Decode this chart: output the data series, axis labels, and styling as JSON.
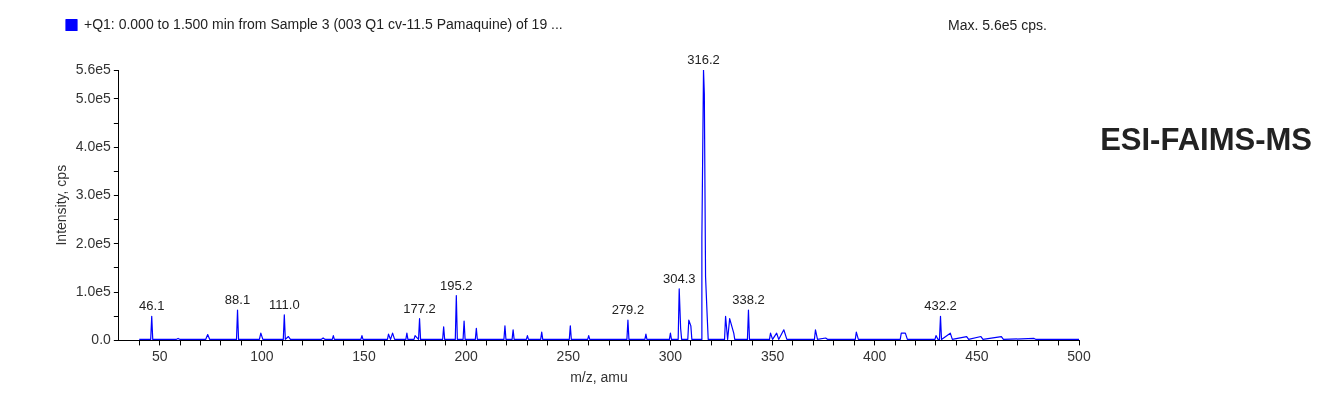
{
  "chart_data": {
    "type": "line",
    "xlabel": "m/z, amu",
    "ylabel": "Intensity, cps",
    "xlim": [
      30,
      500
    ],
    "xticks": [
      {
        "value": 40,
        "label": null
      },
      50,
      {
        "value": 60,
        "label": null
      },
      {
        "value": 70,
        "label": null
      },
      {
        "value": 80,
        "label": null
      },
      {
        "value": 90,
        "label": null
      },
      100,
      {
        "value": 110,
        "label": null
      },
      {
        "value": 120,
        "label": null
      },
      {
        "value": 130,
        "label": null
      },
      {
        "value": 140,
        "label": null
      },
      150,
      {
        "value": 160,
        "label": null
      },
      {
        "value": 170,
        "label": null
      },
      {
        "value": 180,
        "label": null
      },
      {
        "value": 190,
        "label": null
      },
      200,
      {
        "value": 210,
        "label": null
      },
      {
        "value": 220,
        "label": null
      },
      {
        "value": 230,
        "label": null
      },
      {
        "value": 240,
        "label": null
      },
      250,
      {
        "value": 260,
        "label": null
      },
      {
        "value": 270,
        "label": null
      },
      {
        "value": 280,
        "label": null
      },
      {
        "value": 290,
        "label": null
      },
      300,
      {
        "value": 310,
        "label": null
      },
      {
        "value": 320,
        "label": null
      },
      {
        "value": 330,
        "label": null
      },
      {
        "value": 340,
        "label": null
      },
      350,
      {
        "value": 360,
        "label": null
      },
      {
        "value": 370,
        "label": null
      },
      {
        "value": 380,
        "label": null
      },
      {
        "value": 390,
        "label": null
      },
      400,
      {
        "value": 410,
        "label": null
      },
      {
        "value": 420,
        "label": null
      },
      {
        "value": 430,
        "label": null
      },
      {
        "value": 440,
        "label": null
      },
      450,
      {
        "value": 460,
        "label": null
      },
      {
        "value": 470,
        "label": null
      },
      {
        "value": 480,
        "label": null
      },
      {
        "value": 490,
        "label": null
      },
      500
    ],
    "ylim": [
      0,
      560000
    ],
    "yticks": [
      {
        "value": 0,
        "label": "0.0"
      },
      {
        "value": 50000,
        "label": null
      },
      {
        "value": 100000,
        "label": "1.0e5"
      },
      {
        "value": 150000,
        "label": null
      },
      {
        "value": 200000,
        "label": "2.0e5"
      },
      {
        "value": 250000,
        "label": null
      },
      {
        "value": 300000,
        "label": "3.0e5"
      },
      {
        "value": 350000,
        "label": null
      },
      {
        "value": 400000,
        "label": "4.0e5"
      },
      {
        "value": 450000,
        "label": null
      },
      {
        "value": 500000,
        "label": "5.0e5"
      },
      {
        "value": 560000,
        "label": "5.6e5"
      }
    ],
    "grid": false,
    "legend": "top left",
    "marker": "none",
    "line_style": "solid",
    "series": [
      {
        "name": "+Q1: 0.000 to 1.500 min from Sample 3 (003 Q1 cv-11.5 Pamaquine) of 19 ...",
        "color": "#0000ff",
        "x": [
          40,
          45.6,
          46.1,
          46.6,
          58,
          59,
          60,
          72.5,
          73.5,
          74.5,
          87.6,
          88.1,
          88.6,
          98.8,
          99.5,
          100.5,
          110.5,
          111,
          111.5,
          113,
          114,
          129,
          130,
          131,
          134.5,
          135,
          135.5,
          148.5,
          149,
          149.5,
          161.5,
          162,
          163,
          164,
          165,
          170.5,
          171,
          171.5,
          174.5,
          175,
          176.7,
          177.2,
          177.7,
          188.5,
          189,
          189.5,
          194.7,
          195.2,
          195.7,
          198.5,
          199,
          199.5,
          204.5,
          205,
          205.5,
          218.5,
          219,
          219.5,
          222.5,
          223,
          223.5,
          229.5,
          230,
          230.5,
          236.5,
          237,
          237.5,
          250.5,
          251,
          251.5,
          259.5,
          260,
          260.5,
          278.7,
          279.2,
          279.7,
          287.5,
          288,
          288.5,
          299.5,
          300,
          300.5,
          303.8,
          304.3,
          305,
          305.5,
          308.5,
          309,
          310,
          310.5,
          315,
          315.4,
          316.2,
          316.6,
          317.2,
          318,
          318.5,
          326.5,
          327,
          328,
          329,
          331,
          331.5,
          337.7,
          338.2,
          338.7,
          348.5,
          349,
          350,
          352,
          353,
          355.5,
          357,
          370.5,
          371,
          372,
          376,
          377,
          390.5,
          391,
          392,
          412.5,
          413,
          415,
          416,
          429.5,
          430,
          431,
          431.7,
          432.2,
          432.7,
          437,
          438,
          445,
          446,
          452,
          453,
          462,
          463,
          478,
          479,
          500
        ],
        "values": [
          2000,
          2000,
          50000,
          2000,
          2000,
          4000,
          2000,
          2000,
          12000,
          2000,
          2000,
          63000,
          2000,
          2000,
          15000,
          2000,
          2000,
          53000,
          2000,
          8000,
          2000,
          2000,
          5000,
          2000,
          2000,
          10000,
          2000,
          2000,
          10000,
          2000,
          2000,
          13000,
          2000,
          15000,
          2000,
          2000,
          15000,
          2000,
          2000,
          10000,
          2000,
          45000,
          2000,
          2000,
          28000,
          2000,
          2000,
          93000,
          2000,
          2000,
          40000,
          2000,
          2000,
          25000,
          2000,
          2000,
          30000,
          2000,
          2000,
          22000,
          2000,
          2000,
          10000,
          2000,
          2000,
          17000,
          2000,
          2000,
          30000,
          2000,
          2000,
          10000,
          2000,
          2000,
          42000,
          2000,
          2000,
          13000,
          2000,
          2000,
          15000,
          2000,
          2000,
          107000,
          25000,
          2000,
          2000,
          42000,
          30000,
          2000,
          2000,
          212000,
          560000,
          510000,
          132000,
          50000,
          2000,
          2000,
          50000,
          2000,
          45000,
          15000,
          2000,
          2000,
          63000,
          2000,
          2000,
          15000,
          2000,
          15000,
          2000,
          22000,
          2000,
          2000,
          22000,
          2000,
          5000,
          2000,
          2000,
          17000,
          2000,
          2000,
          15000,
          15000,
          2000,
          2000,
          10000,
          2000,
          2000,
          50000,
          2000,
          15000,
          2000,
          8000,
          2000,
          8000,
          2000,
          8000,
          2000,
          4000,
          2000,
          2000
        ]
      }
    ],
    "annotations": [
      {
        "text": "46.1",
        "x": 46.1,
        "y": 50000
      },
      {
        "text": "88.1",
        "x": 88.1,
        "y": 63000
      },
      {
        "text": "111.0",
        "x": 111,
        "y": 53000
      },
      {
        "text": "177.2",
        "x": 177.2,
        "y": 45000
      },
      {
        "text": "195.2",
        "x": 195.2,
        "y": 93000
      },
      {
        "text": "279.2",
        "x": 279.2,
        "y": 42000
      },
      {
        "text": "304.3",
        "x": 304.3,
        "y": 107000
      },
      {
        "text": "316.2",
        "x": 316.2,
        "y": 560000
      },
      {
        "text": "338.2",
        "x": 338.2,
        "y": 63000
      },
      {
        "text": "432.2",
        "x": 432.2,
        "y": 50000
      },
      "Max. 5.6e5 cps.",
      "ESI-FAIMS-MS"
    ]
  }
}
